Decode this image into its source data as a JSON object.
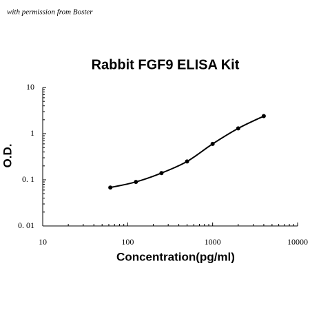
{
  "note": "with permission from Boster",
  "chart_data": {
    "type": "scatter",
    "title": "Rabbit FGF9 ELISA Kit",
    "xlabel": "Concentration(pg/ml)",
    "ylabel": "O.D.",
    "x": [
      62.5,
      125,
      250,
      500,
      1000,
      2000,
      4000
    ],
    "series": [
      {
        "color": "#000000",
        "values": [
          0.068,
          0.09,
          0.14,
          0.25,
          0.6,
          1.3,
          2.4
        ]
      }
    ],
    "xscale": "log",
    "yscale": "log",
    "fit_line": true,
    "minor_ticks": true,
    "xlim": [
      10,
      10000
    ],
    "xticks": [
      10,
      100,
      1000,
      10000
    ],
    "ylim": [
      0.01,
      10
    ],
    "yticks": [
      {
        "value": 0.01,
        "label": "0. 01"
      },
      {
        "value": 0.1,
        "label": "0. 1"
      },
      1,
      10
    ]
  }
}
